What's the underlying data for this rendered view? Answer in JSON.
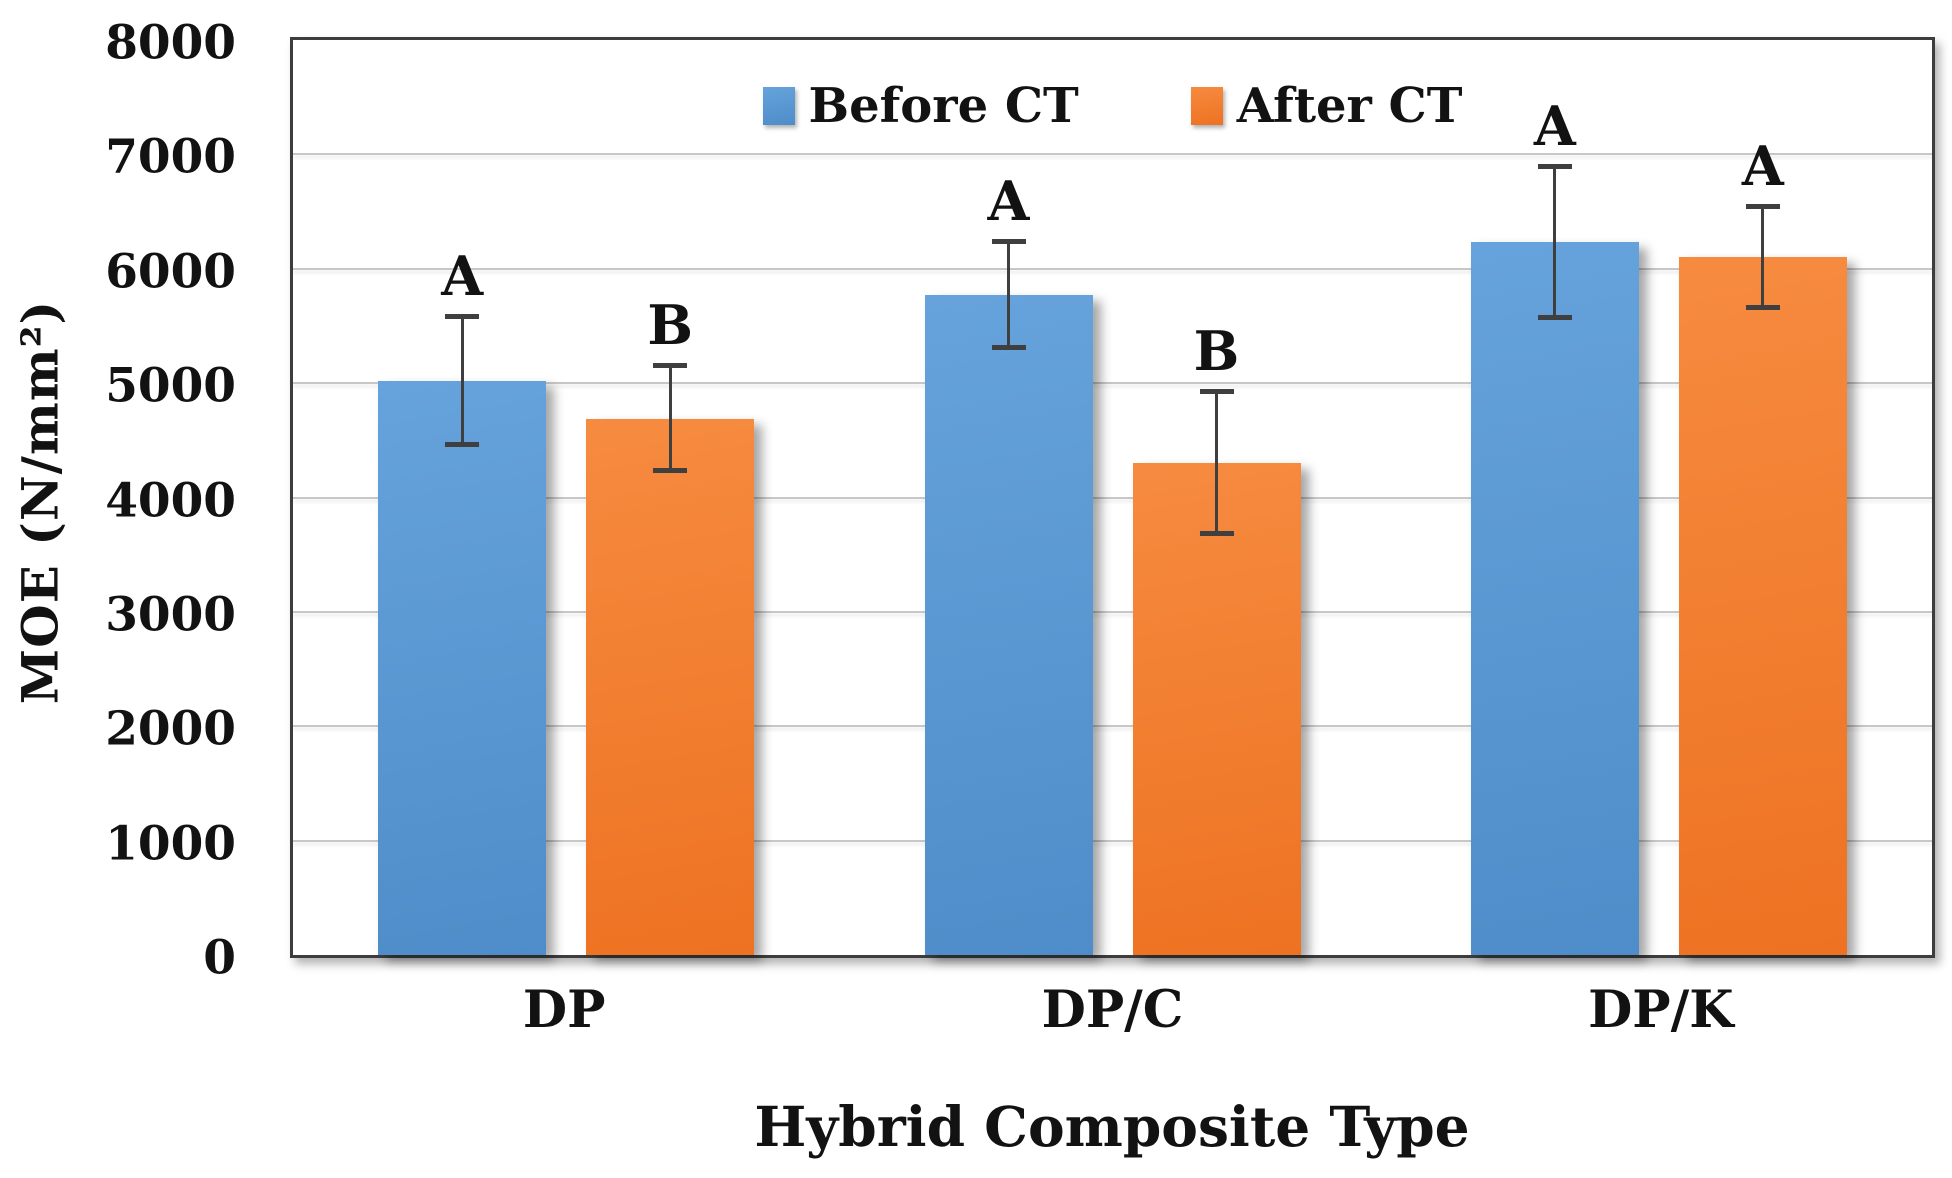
{
  "y_axis": {
    "title": "MOE (N/mm²)",
    "tick_labels": [
      "0",
      "1000",
      "2000",
      "3000",
      "4000",
      "5000",
      "6000",
      "7000",
      "8000"
    ]
  },
  "x_axis": {
    "title": "Hybrid Composite Type",
    "categories": [
      "DP",
      "DP/C",
      "DP/K"
    ]
  },
  "legend": [
    {
      "label": "Before CT",
      "color": "#5B9BD5"
    },
    {
      "label": "After CT",
      "color": "#F07B2B"
    }
  ],
  "colors": {
    "grid": "#C7C7C7",
    "axis_border": "#3D3D3D",
    "error_bar": "#3F3F3F",
    "text": "#121212"
  },
  "chart_data": {
    "type": "bar",
    "title": "",
    "categories": [
      "DP",
      "DP/C",
      "DP/K"
    ],
    "series": [
      {
        "name": "Before CT",
        "color": "#5B9BD5",
        "gradient": [
          "#66A3DC",
          "#4E8DC9"
        ],
        "values": [
          5020,
          5770,
          6230
        ],
        "errors": [
          560,
          460,
          660
        ],
        "sig_letters": [
          "A",
          "A",
          "A"
        ]
      },
      {
        "name": "After CT",
        "color": "#F07B2B",
        "gradient": [
          "#F68B40",
          "#EE7222"
        ],
        "values": [
          4690,
          4300,
          6100
        ],
        "errors": [
          460,
          620,
          440
        ],
        "sig_letters": [
          "B",
          "B",
          "A"
        ]
      }
    ],
    "ylim": [
      0,
      8000
    ],
    "y_step": 1000,
    "ylabel": "MOE (N/mm²)",
    "xlabel": "Hybrid Composite Type",
    "grid": true,
    "error_bars": true,
    "legend_position": "top-center"
  }
}
